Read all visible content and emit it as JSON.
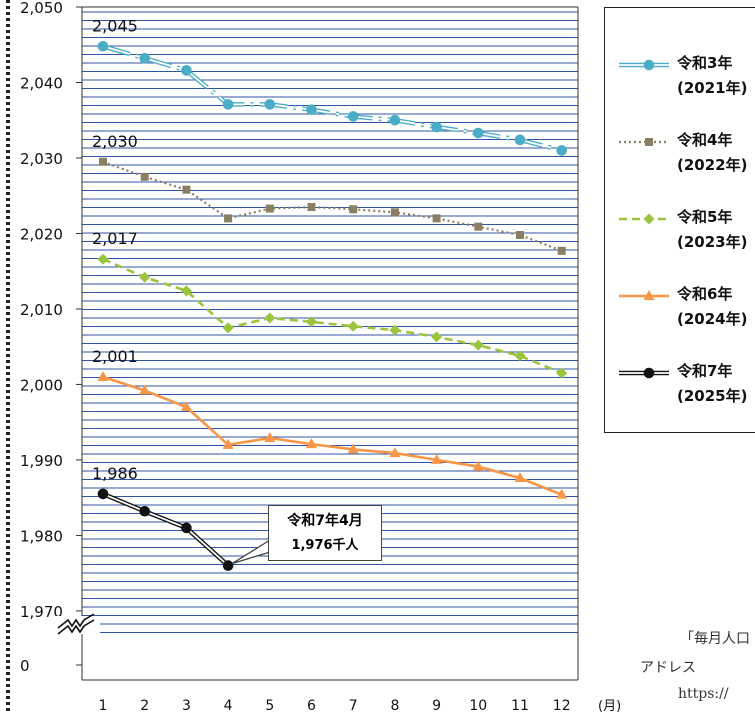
{
  "chart_data": {
    "type": "line",
    "categories": [
      "1",
      "2",
      "3",
      "4",
      "5",
      "6",
      "7",
      "8",
      "9",
      "10",
      "11",
      "12"
    ],
    "x_unit": "(月)",
    "y_ticks": [
      "2,050",
      "2,040",
      "2,030",
      "2,020",
      "2,010",
      "2,000",
      "1,990",
      "1,980",
      "1,970",
      "0"
    ],
    "ylim": [
      1968,
      2050
    ],
    "axis_break": true,
    "grid": true,
    "legend_position": "right",
    "series": [
      {
        "name": "令和3年",
        "name_sub": "(2021年)",
        "color": "#4bacc6",
        "marker": "circle",
        "style": "double-dashdot",
        "values": [
          2044.8,
          2043.2,
          2041.6,
          2037.1,
          2037.1,
          2036.4,
          2035.5,
          2035.0,
          2034.1,
          2033.3,
          2032.4,
          2031.0
        ],
        "first_label": "2,045"
      },
      {
        "name": "令和4年",
        "name_sub": "(2022年)",
        "color": "#8b7f63",
        "marker": "square",
        "style": "dotted",
        "values": [
          2029.5,
          2027.5,
          2025.8,
          2022.0,
          2023.3,
          2023.5,
          2023.2,
          2022.8,
          2022.0,
          2020.9,
          2019.8,
          2017.7
        ],
        "first_label": "2,030"
      },
      {
        "name": "令和5年",
        "name_sub": "(2023年)",
        "color": "#9bc43c",
        "marker": "diamond",
        "style": "dashed",
        "values": [
          2016.6,
          2014.2,
          2012.4,
          2007.5,
          2008.8,
          2008.3,
          2007.7,
          2007.2,
          2006.3,
          2005.2,
          2003.8,
          2001.5
        ],
        "first_label": "2,017"
      },
      {
        "name": "令和6年",
        "name_sub": "(2024年)",
        "color": "#f79646",
        "marker": "triangle",
        "style": "solid",
        "values": [
          2001.0,
          1999.2,
          1997.0,
          1992.0,
          1992.9,
          1992.1,
          1991.4,
          1990.9,
          1990.0,
          1989.1,
          1987.6,
          1985.4
        ],
        "first_label": "2,001"
      },
      {
        "name": "令和7年",
        "name_sub": "(2025年)",
        "color": "#111111",
        "marker": "circle",
        "style": "double",
        "values": [
          1985.5,
          1983.2,
          1981.0,
          1976.0,
          null,
          null,
          null,
          null,
          null,
          null,
          null,
          null
        ],
        "first_label": "1,986"
      }
    ],
    "annotation": {
      "line1": "令和7年4月",
      "line2": "1,976千人",
      "series_index": 4,
      "point_index": 3
    }
  },
  "source_note": {
    "line1": "「毎月人口",
    "line2": "アドレス",
    "line3": "https://"
  }
}
